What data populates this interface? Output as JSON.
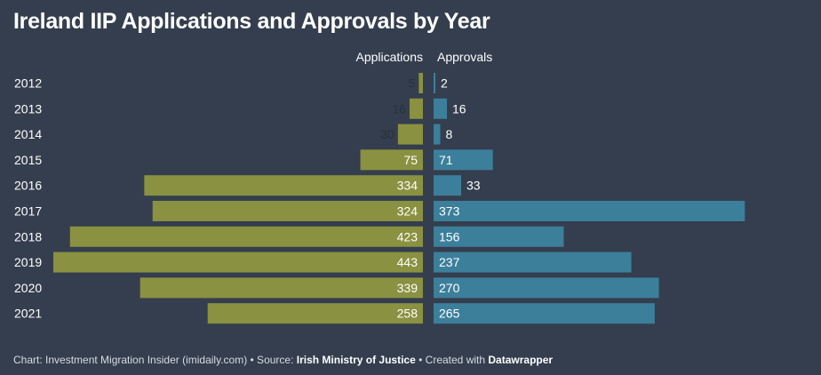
{
  "chart_data": {
    "type": "bar",
    "title": "Ireland IIP Applications and Approvals by Year",
    "categories": [
      "2012",
      "2013",
      "2014",
      "2015",
      "2016",
      "2017",
      "2018",
      "2019",
      "2020",
      "2021"
    ],
    "series": [
      {
        "name": "Applications",
        "values": [
          5,
          16,
          30,
          75,
          334,
          324,
          423,
          443,
          339,
          258
        ],
        "color": "#8a9140"
      },
      {
        "name": "Approvals",
        "values": [
          2,
          16,
          8,
          71,
          33,
          373,
          156,
          237,
          270,
          265
        ],
        "color": "#3c7f9b"
      }
    ],
    "xlim": [
      0,
      443
    ]
  },
  "footer": {
    "prefix": "Chart: Investment Migration Insider (imidaily.com) • Source: ",
    "source": "Irish Ministry of Justice",
    "middle": " • Created with ",
    "tool": "Datawrapper"
  }
}
